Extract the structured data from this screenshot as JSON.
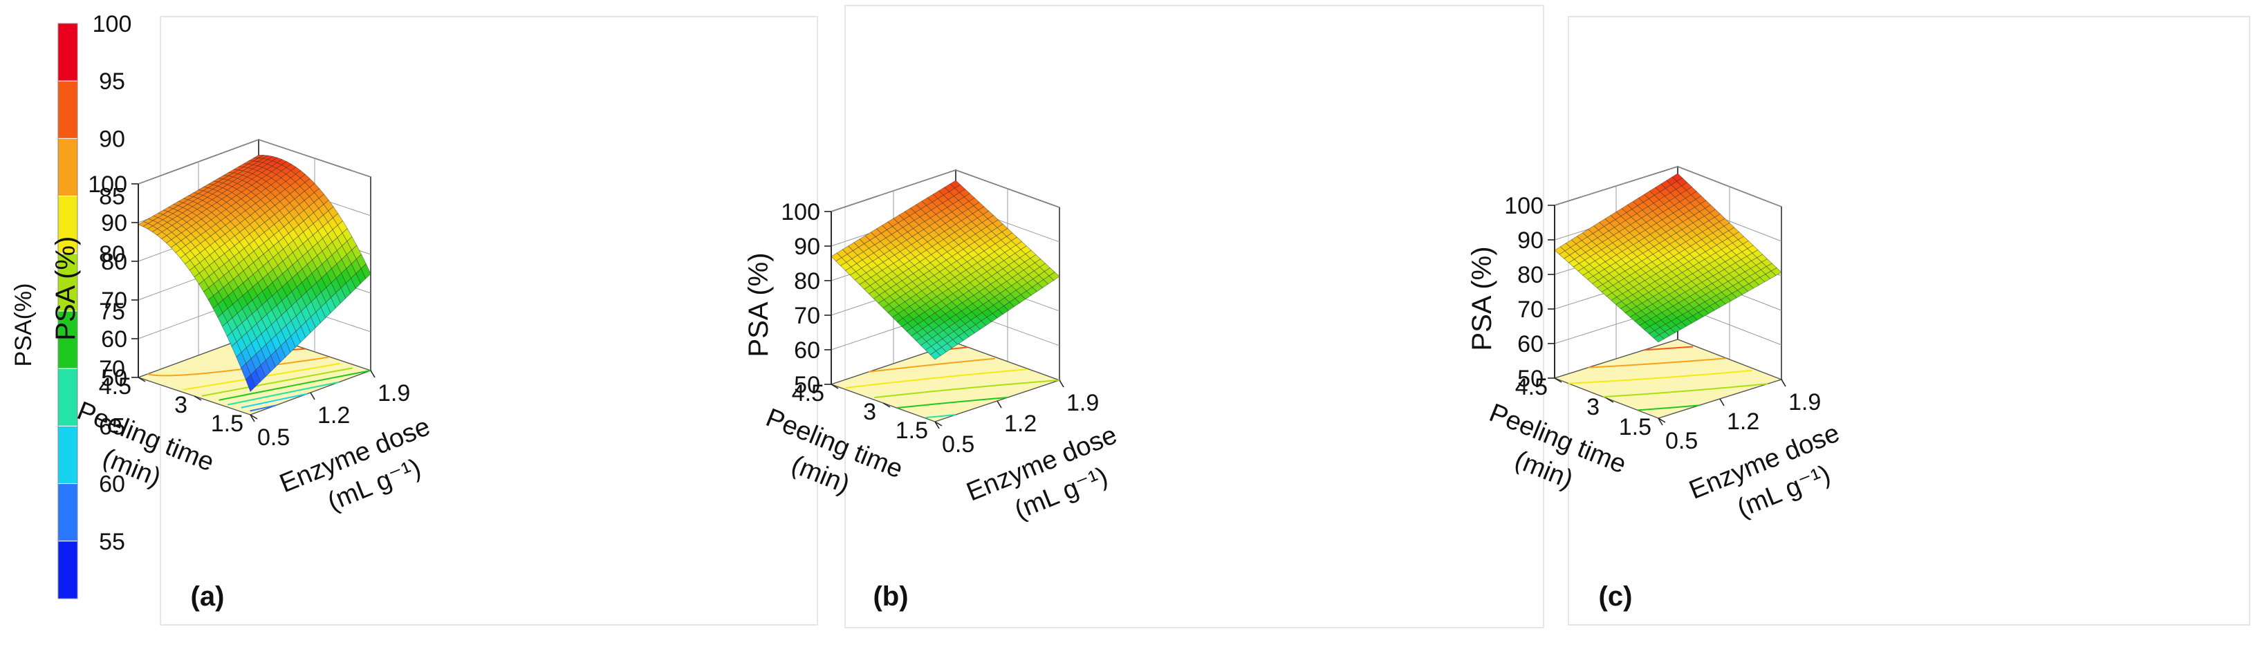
{
  "colorbar": {
    "label": "PSA(%)",
    "ticks": [
      "100",
      "95",
      "90",
      "85",
      "80",
      "75",
      "70",
      "65",
      "60",
      "55"
    ],
    "colors": [
      "#e8001c",
      "#f55a14",
      "#f7a21a",
      "#f4ea12",
      "#a8e012",
      "#1ec81e",
      "#25e3a6",
      "#16d4f0",
      "#2a78ff",
      "#0a1ef4"
    ]
  },
  "chart_data": [
    {
      "type": "surface3d",
      "panel_label": "(a)",
      "zlabel": "PSA (%)",
      "xlabel": "Peeling time",
      "xlabel_unit": "(min)",
      "ylabel": "Enzyme dose",
      "ylabel_unit": "(mL g⁻¹)",
      "x_ticks": [
        "1.5",
        "3",
        "4.5"
      ],
      "y_ticks": [
        "0.5",
        "1.2",
        "1.9"
      ],
      "z_ticks": [
        "50",
        "60",
        "70",
        "80",
        "90",
        "100"
      ],
      "xlim": [
        1.5,
        4.5
      ],
      "ylim": [
        0.5,
        1.9
      ],
      "zlim": [
        50,
        100
      ],
      "corner_values": {
        "x1.5_y0.5": 56,
        "x4.5_y0.5": 89.5,
        "x1.5_y1.9": 75,
        "x4.5_y1.9": 96
      },
      "curvature": 8,
      "grid_n": 24
    },
    {
      "type": "surface3d",
      "panel_label": "(b)",
      "zlabel": "PSA (%)",
      "xlabel": "Peeling time",
      "xlabel_unit": "(min)",
      "ylabel": "Enzyme dose",
      "ylabel_unit": "(mL g⁻¹)",
      "x_ticks": [
        "1.5",
        "3",
        "4.5"
      ],
      "y_ticks": [
        "0.5",
        "1.2",
        "1.9"
      ],
      "z_ticks": [
        "50",
        "60",
        "70",
        "80",
        "90",
        "100"
      ],
      "xlim": [
        1.5,
        4.5
      ],
      "ylim": [
        0.5,
        1.9
      ],
      "zlim": [
        50,
        100
      ],
      "corner_values": {
        "x1.5_y0.5": 68,
        "x4.5_y0.5": 87,
        "x1.5_y1.9": 80,
        "x4.5_y1.9": 97
      },
      "curvature": 0,
      "grid_n": 22
    },
    {
      "type": "surface3d",
      "panel_label": "(c)",
      "zlabel": "PSA (%)",
      "xlabel": "Peeling time",
      "xlabel_unit": "(min)",
      "ylabel": "Enzyme dose",
      "ylabel_unit": "(mL g⁻¹)",
      "x_ticks": [
        "1.5",
        "3",
        "4.5"
      ],
      "y_ticks": [
        "0.5",
        "1.2",
        "1.9"
      ],
      "z_ticks": [
        "50",
        "60",
        "70",
        "80",
        "90",
        "100"
      ],
      "xlim": [
        1.5,
        4.5
      ],
      "ylim": [
        0.5,
        1.9
      ],
      "zlim": [
        50,
        100
      ],
      "corner_values": {
        "x1.5_y0.5": 72,
        "x4.5_y0.5": 87,
        "x1.5_y1.9": 81,
        "x4.5_y1.9": 98
      },
      "curvature": 0,
      "grid_n": 22
    }
  ]
}
